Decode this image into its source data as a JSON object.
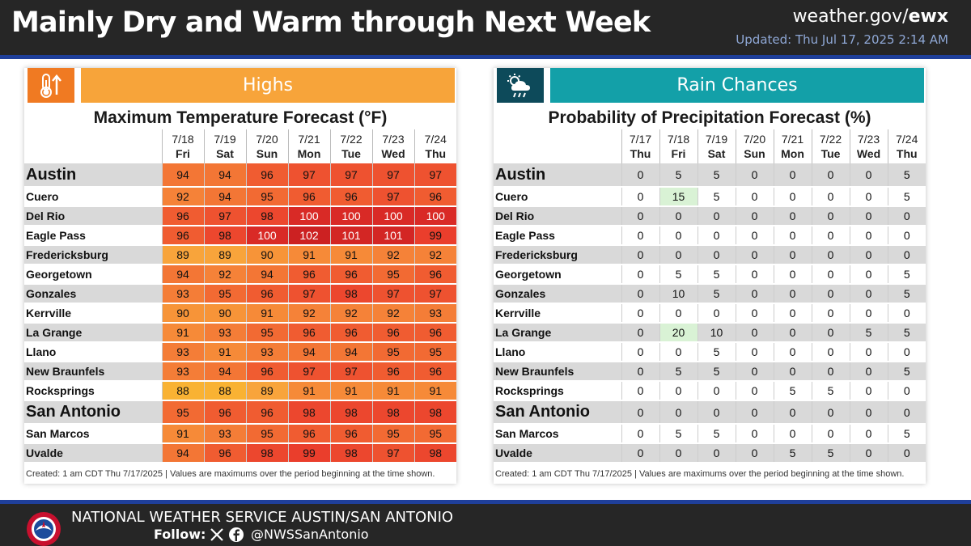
{
  "header": {
    "title": "Mainly Dry and Warm through Next Week",
    "site_prefix": "weather.gov/",
    "site_bold": "ewx",
    "updated": "Updated: Thu Jul 17, 2025 2:14 AM"
  },
  "highs": {
    "icon": "thermometer-up-icon",
    "banner": "Highs",
    "chart_title": "Maximum Temperature Forecast (°F)",
    "note": "Created: 1 am CDT Thu 7/17/2025  |  Values are maximums over the period beginning at the time shown.",
    "days": [
      {
        "date": "7/18",
        "dow": "Fri"
      },
      {
        "date": "7/19",
        "dow": "Sat"
      },
      {
        "date": "7/20",
        "dow": "Sun"
      },
      {
        "date": "7/21",
        "dow": "Mon"
      },
      {
        "date": "7/22",
        "dow": "Tue"
      },
      {
        "date": "7/23",
        "dow": "Wed"
      },
      {
        "date": "7/24",
        "dow": "Thu"
      }
    ],
    "rows": [
      {
        "city": "Austin",
        "big": true,
        "values": [
          94,
          94,
          96,
          97,
          97,
          97,
          97
        ]
      },
      {
        "city": "Cuero",
        "values": [
          92,
          94,
          95,
          96,
          96,
          97,
          96
        ]
      },
      {
        "city": "Del Rio",
        "values": [
          96,
          97,
          98,
          100,
          100,
          100,
          100
        ]
      },
      {
        "city": "Eagle Pass",
        "values": [
          96,
          98,
          100,
          102,
          101,
          101,
          99
        ]
      },
      {
        "city": "Fredericksburg",
        "values": [
          89,
          89,
          90,
          91,
          91,
          92,
          92
        ]
      },
      {
        "city": "Georgetown",
        "values": [
          94,
          92,
          94,
          96,
          96,
          95,
          96
        ]
      },
      {
        "city": "Gonzales",
        "values": [
          93,
          95,
          96,
          97,
          98,
          97,
          97
        ]
      },
      {
        "city": "Kerrville",
        "values": [
          90,
          90,
          91,
          92,
          92,
          92,
          93
        ]
      },
      {
        "city": "La Grange",
        "values": [
          91,
          93,
          95,
          96,
          96,
          96,
          96
        ]
      },
      {
        "city": "Llano",
        "values": [
          93,
          91,
          93,
          94,
          94,
          95,
          95
        ]
      },
      {
        "city": "New Braunfels",
        "values": [
          93,
          94,
          96,
          97,
          97,
          96,
          96
        ]
      },
      {
        "city": "Rocksprings",
        "values": [
          88,
          88,
          89,
          91,
          91,
          91,
          91
        ]
      },
      {
        "city": "San Antonio",
        "big": true,
        "values": [
          95,
          96,
          96,
          98,
          98,
          98,
          98
        ]
      },
      {
        "city": "San Marcos",
        "values": [
          91,
          93,
          95,
          96,
          96,
          95,
          95
        ]
      },
      {
        "city": "Uvalde",
        "values": [
          94,
          96,
          98,
          99,
          98,
          97,
          98
        ]
      }
    ],
    "colors": {
      "c88": "#f9b233",
      "c89": "#f8a43b",
      "c90": "#f79438",
      "c91": "#f68a38",
      "c92": "#f58238",
      "c93": "#f47d37",
      "c94": "#f37635",
      "c95": "#f26a33",
      "c96": "#f05c31",
      "c97": "#ee5230",
      "c98": "#ec472e",
      "c99": "#ea3e2c",
      "c100": "#d92a26",
      "c101": "#d32624",
      "c102": "#cc2122"
    }
  },
  "rain": {
    "icon": "rain-cloud-icon",
    "banner": "Rain Chances",
    "chart_title": "Probability of Precipitation Forecast (%)",
    "note": "Created: 1 am CDT Thu 7/17/2025  |  Values are maximums over the period beginning at the time shown.",
    "days": [
      {
        "date": "7/17",
        "dow": "Thu"
      },
      {
        "date": "7/18",
        "dow": "Fri"
      },
      {
        "date": "7/19",
        "dow": "Sat"
      },
      {
        "date": "7/20",
        "dow": "Sun"
      },
      {
        "date": "7/21",
        "dow": "Mon"
      },
      {
        "date": "7/22",
        "dow": "Tue"
      },
      {
        "date": "7/23",
        "dow": "Wed"
      },
      {
        "date": "7/24",
        "dow": "Thu"
      }
    ],
    "rows": [
      {
        "city": "Austin",
        "big": true,
        "values": [
          0,
          5,
          5,
          0,
          0,
          0,
          0,
          5
        ]
      },
      {
        "city": "Cuero",
        "values": [
          0,
          15,
          5,
          0,
          0,
          0,
          0,
          5
        ]
      },
      {
        "city": "Del Rio",
        "values": [
          0,
          0,
          0,
          0,
          0,
          0,
          0,
          0
        ]
      },
      {
        "city": "Eagle Pass",
        "values": [
          0,
          0,
          0,
          0,
          0,
          0,
          0,
          0
        ]
      },
      {
        "city": "Fredericksburg",
        "values": [
          0,
          0,
          0,
          0,
          0,
          0,
          0,
          0
        ]
      },
      {
        "city": "Georgetown",
        "values": [
          0,
          5,
          5,
          0,
          0,
          0,
          0,
          5
        ]
      },
      {
        "city": "Gonzales",
        "values": [
          0,
          10,
          5,
          0,
          0,
          0,
          0,
          5
        ]
      },
      {
        "city": "Kerrville",
        "values": [
          0,
          0,
          0,
          0,
          0,
          0,
          0,
          0
        ]
      },
      {
        "city": "La Grange",
        "values": [
          0,
          20,
          10,
          0,
          0,
          0,
          5,
          5
        ]
      },
      {
        "city": "Llano",
        "values": [
          0,
          0,
          5,
          0,
          0,
          0,
          0,
          0
        ]
      },
      {
        "city": "New Braunfels",
        "values": [
          0,
          5,
          5,
          0,
          0,
          0,
          0,
          5
        ]
      },
      {
        "city": "Rocksprings",
        "values": [
          0,
          0,
          0,
          0,
          5,
          5,
          0,
          0
        ]
      },
      {
        "city": "San Antonio",
        "big": true,
        "values": [
          0,
          0,
          0,
          0,
          0,
          0,
          0,
          0
        ]
      },
      {
        "city": "San Marcos",
        "values": [
          0,
          5,
          5,
          0,
          0,
          0,
          0,
          5
        ]
      },
      {
        "city": "Uvalde",
        "values": [
          0,
          0,
          0,
          0,
          5,
          5,
          0,
          0
        ]
      }
    ],
    "highlight_color": "#d9f2d5"
  },
  "footer": {
    "office": "NATIONAL WEATHER SERVICE AUSTIN/SAN ANTONIO",
    "follow": "Follow:",
    "handle": "@NWSSanAntonio",
    "icons": [
      "x-icon",
      "facebook-icon"
    ]
  }
}
